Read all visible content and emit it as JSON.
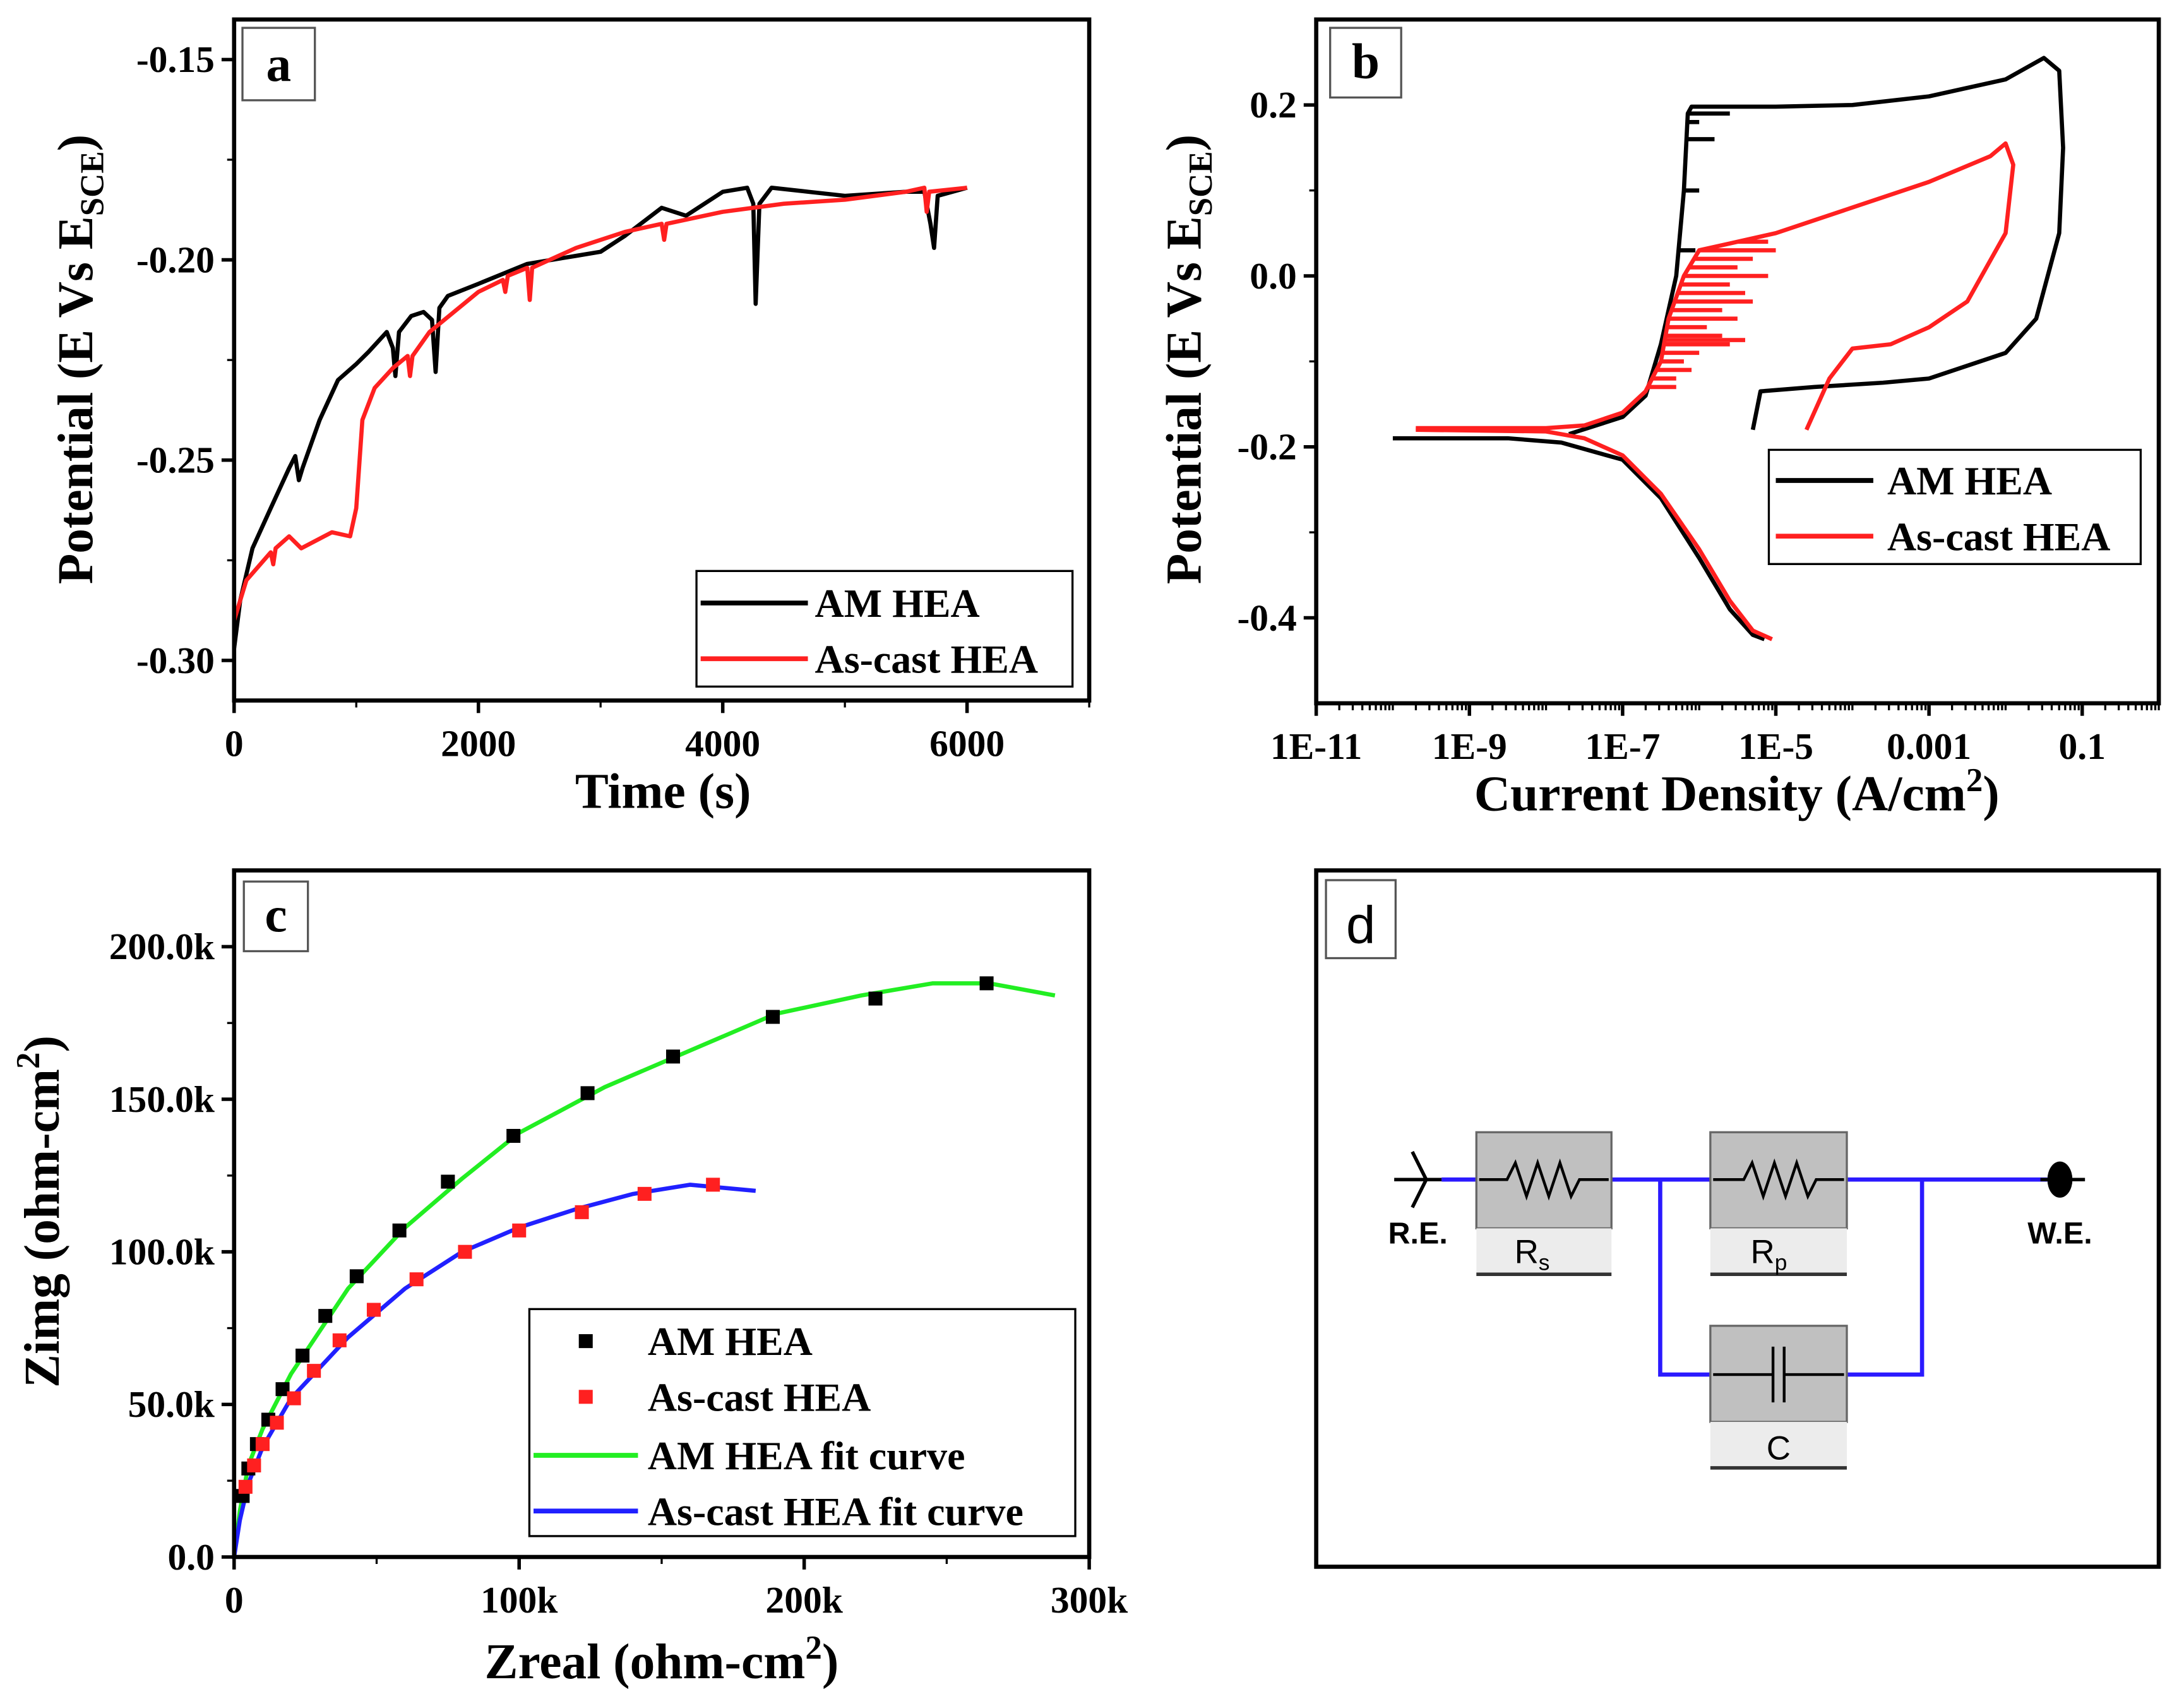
{
  "colors": {
    "am": "#000000",
    "ascast": "#ff2020",
    "am_fit": "#22ee22",
    "ascast_fit": "#2020ff",
    "wire": "#2b1aff",
    "block": "#c0c0c0",
    "block_label": "#ececec"
  },
  "chart_data": [
    {
      "panel": "a",
      "type": "line",
      "xlabel": "Time (s)",
      "ylabel_main": "Potential (E Vs E",
      "ylabel_sub": "SCE",
      "ylabel_end": ")",
      "xlim": [
        0,
        7000
      ],
      "ylim": [
        -0.31,
        -0.14
      ],
      "xticks": [
        0,
        2000,
        4000,
        6000
      ],
      "xtick_labels": [
        "0",
        "2000",
        "4000",
        "6000"
      ],
      "yticks": [
        -0.15,
        -0.2,
        -0.25,
        -0.3
      ],
      "ytick_labels": [
        "-0.15",
        "-0.20",
        "-0.25",
        "-0.30"
      ],
      "legend": "bottom-right",
      "series": [
        {
          "name": "AM HEA",
          "color": "#000000",
          "points": [
            [
              0,
              -0.297
            ],
            [
              50,
              -0.285
            ],
            [
              150,
              -0.272
            ],
            [
              300,
              -0.262
            ],
            [
              450,
              -0.252
            ],
            [
              500,
              -0.249
            ],
            [
              530,
              -0.255
            ],
            [
              560,
              -0.252
            ],
            [
              700,
              -0.24
            ],
            [
              850,
              -0.23
            ],
            [
              1000,
              -0.226
            ],
            [
              1100,
              -0.223
            ],
            [
              1250,
              -0.218
            ],
            [
              1300,
              -0.222
            ],
            [
              1320,
              -0.229
            ],
            [
              1350,
              -0.218
            ],
            [
              1450,
              -0.214
            ],
            [
              1550,
              -0.213
            ],
            [
              1620,
              -0.215
            ],
            [
              1650,
              -0.228
            ],
            [
              1680,
              -0.212
            ],
            [
              1750,
              -0.209
            ],
            [
              2000,
              -0.206
            ],
            [
              2400,
              -0.201
            ],
            [
              2800,
              -0.199
            ],
            [
              3000,
              -0.198
            ],
            [
              3200,
              -0.194
            ],
            [
              3500,
              -0.187
            ],
            [
              3700,
              -0.189
            ],
            [
              4000,
              -0.183
            ],
            [
              4200,
              -0.182
            ],
            [
              4250,
              -0.186
            ],
            [
              4270,
              -0.211
            ],
            [
              4300,
              -0.186
            ],
            [
              4400,
              -0.182
            ],
            [
              4700,
              -0.183
            ],
            [
              5000,
              -0.184
            ],
            [
              5500,
              -0.183
            ],
            [
              5650,
              -0.183
            ],
            [
              5700,
              -0.191
            ],
            [
              5730,
              -0.197
            ],
            [
              5760,
              -0.184
            ],
            [
              6000,
              -0.182
            ]
          ]
        },
        {
          "name": "As-cast HEA",
          "color": "#ff2020",
          "points": [
            [
              0,
              -0.29
            ],
            [
              100,
              -0.28
            ],
            [
              300,
              -0.273
            ],
            [
              320,
              -0.276
            ],
            [
              340,
              -0.272
            ],
            [
              450,
              -0.269
            ],
            [
              550,
              -0.272
            ],
            [
              800,
              -0.268
            ],
            [
              950,
              -0.269
            ],
            [
              1000,
              -0.262
            ],
            [
              1050,
              -0.24
            ],
            [
              1150,
              -0.232
            ],
            [
              1300,
              -0.227
            ],
            [
              1420,
              -0.224
            ],
            [
              1440,
              -0.229
            ],
            [
              1460,
              -0.224
            ],
            [
              1600,
              -0.218
            ],
            [
              2000,
              -0.208
            ],
            [
              2200,
              -0.205
            ],
            [
              2220,
              -0.208
            ],
            [
              2240,
              -0.204
            ],
            [
              2400,
              -0.202
            ],
            [
              2420,
              -0.21
            ],
            [
              2440,
              -0.202
            ],
            [
              2800,
              -0.197
            ],
            [
              3200,
              -0.193
            ],
            [
              3500,
              -0.191
            ],
            [
              3520,
              -0.195
            ],
            [
              3540,
              -0.191
            ],
            [
              4000,
              -0.188
            ],
            [
              4500,
              -0.186
            ],
            [
              5000,
              -0.185
            ],
            [
              5500,
              -0.183
            ],
            [
              5650,
              -0.182
            ],
            [
              5670,
              -0.188
            ],
            [
              5690,
              -0.183
            ],
            [
              6000,
              -0.182
            ]
          ]
        }
      ]
    },
    {
      "panel": "b",
      "type": "line",
      "xscale": "log",
      "xlabel_main": "Current Density (A/cm",
      "xlabel_sup": "2",
      "xlabel_end": ")",
      "ylabel_main": "Potential (E Vs E",
      "ylabel_sub": "SCE",
      "ylabel_end": ")",
      "xlim_log10": [
        -11,
        0
      ],
      "ylim": [
        -0.5,
        0.3
      ],
      "xticks_log10": [
        -11,
        -9,
        -7,
        -5,
        -3,
        -1
      ],
      "xtick_labels": [
        "1E-11",
        "1E-9",
        "1E-7",
        "1E-5",
        "0.001",
        "0.1"
      ],
      "yticks": [
        0.2,
        0.0,
        -0.2,
        -0.4
      ],
      "ytick_labels": [
        "0.2",
        "0.0",
        "-0.2",
        "-0.4"
      ],
      "legend": "center-right",
      "series": [
        {
          "name": "AM HEA",
          "color": "#000000",
          "cathodic_log10": [
            [
              -10,
              -0.19
            ],
            [
              -8.5,
              -0.19
            ],
            [
              -7.8,
              -0.195
            ],
            [
              -7,
              -0.215
            ],
            [
              -6.5,
              -0.26
            ],
            [
              -6,
              -0.33
            ],
            [
              -5.6,
              -0.39
            ],
            [
              -5.3,
              -0.42
            ],
            [
              -5.15,
              -0.425
            ]
          ],
          "anodic_log10": [
            [
              -7.7,
              -0.185
            ],
            [
              -7,
              -0.165
            ],
            [
              -6.7,
              -0.14
            ],
            [
              -6.5,
              -0.08
            ],
            [
              -6.3,
              0.0
            ],
            [
              -6.2,
              0.1
            ],
            [
              -6.15,
              0.19
            ],
            [
              -6.1,
              0.198
            ],
            [
              -5,
              0.198
            ],
            [
              -4,
              0.2
            ],
            [
              -3,
              0.21
            ],
            [
              -2,
              0.23
            ],
            [
              -1.5,
              0.255
            ],
            [
              -1.3,
              0.24
            ],
            [
              -1.25,
              0.15
            ],
            [
              -1.3,
              0.05
            ],
            [
              -1.6,
              -0.05
            ],
            [
              -2,
              -0.09
            ],
            [
              -3,
              -0.12
            ],
            [
              -3.6,
              -0.125
            ],
            [
              -4.5,
              -0.13
            ],
            [
              -5.2,
              -0.135
            ],
            [
              -5.3,
              -0.18
            ]
          ],
          "spikes_log10": [
            [
              0.19,
              -5.6
            ],
            [
              0.16,
              -5.8
            ],
            [
              0.18,
              -6.0
            ],
            [
              0.1,
              -6.0
            ],
            [
              0.03,
              -6.05
            ]
          ]
        },
        {
          "name": "As-cast HEA",
          "color": "#ff2020",
          "cathodic_log10": [
            [
              -9.7,
              -0.18
            ],
            [
              -8,
              -0.182
            ],
            [
              -7.5,
              -0.19
            ],
            [
              -7,
              -0.21
            ],
            [
              -6.5,
              -0.255
            ],
            [
              -6,
              -0.32
            ],
            [
              -5.6,
              -0.38
            ],
            [
              -5.3,
              -0.415
            ],
            [
              -5.05,
              -0.425
            ]
          ],
          "anodic_log10": [
            [
              -9.7,
              -0.178
            ],
            [
              -8,
              -0.178
            ],
            [
              -7.5,
              -0.175
            ],
            [
              -7,
              -0.16
            ],
            [
              -6.7,
              -0.135
            ],
            [
              -6.5,
              -0.1
            ],
            [
              -6.4,
              -0.05
            ],
            [
              -6.2,
              0.0
            ],
            [
              -6,
              0.03
            ],
            [
              -5.5,
              0.04
            ],
            [
              -5,
              0.05
            ],
            [
              -4,
              0.08
            ],
            [
              -3,
              0.11
            ],
            [
              -2.2,
              0.14
            ],
            [
              -2,
              0.155
            ],
            [
              -1.9,
              0.13
            ],
            [
              -2,
              0.05
            ],
            [
              -2.5,
              -0.03
            ],
            [
              -3,
              -0.06
            ],
            [
              -3.5,
              -0.08
            ],
            [
              -4,
              -0.085
            ],
            [
              -4.3,
              -0.12
            ],
            [
              -4.6,
              -0.18
            ]
          ],
          "spikes_log10": [
            [
              0.04,
              -5.1
            ],
            [
              0.03,
              -5.0
            ],
            [
              0.02,
              -5.3
            ],
            [
              0.01,
              -5.5
            ],
            [
              0.0,
              -5.1
            ],
            [
              -0.01,
              -5.6
            ],
            [
              -0.02,
              -5.4
            ],
            [
              -0.03,
              -5.3
            ],
            [
              -0.04,
              -5.7
            ],
            [
              -0.05,
              -5.5
            ],
            [
              -0.06,
              -5.9
            ],
            [
              -0.07,
              -5.7
            ],
            [
              -0.075,
              -5.4
            ],
            [
              -0.08,
              -5.6
            ],
            [
              -0.09,
              -6.0
            ],
            [
              -0.1,
              -6.2
            ],
            [
              -0.11,
              -6.1
            ],
            [
              -0.12,
              -6.3
            ],
            [
              -0.13,
              -6.3
            ]
          ]
        }
      ]
    },
    {
      "panel": "c",
      "type": "scatter",
      "xlabel_main": "Zreal (ohm-cm",
      "xlabel_sup": "2",
      "xlabel_end": ")",
      "ylabel_main": "Zimg (ohm-cm",
      "ylabel_sup": "2",
      "ylabel_end": ")",
      "xlim": [
        0,
        300000
      ],
      "ylim": [
        0,
        225000
      ],
      "xticks": [
        0,
        100000,
        200000,
        300000
      ],
      "xtick_labels": [
        "0",
        "100k",
        "200k",
        "300k"
      ],
      "yticks": [
        0,
        50000,
        100000,
        150000,
        200000
      ],
      "ytick_labels": [
        "0.0",
        "50.0k",
        "100.0k",
        "150.0k",
        "200.0k"
      ],
      "legend": "bottom-right",
      "series": [
        {
          "name": "AM HEA",
          "kind": "scatter",
          "color": "#000000",
          "points": [
            [
              3000,
              20000
            ],
            [
              5000,
              29000
            ],
            [
              8000,
              37000
            ],
            [
              12000,
              45000
            ],
            [
              17000,
              55000
            ],
            [
              24000,
              66000
            ],
            [
              32000,
              79000
            ],
            [
              43000,
              92000
            ],
            [
              58000,
              107000
            ],
            [
              75000,
              123000
            ],
            [
              98000,
              138000
            ],
            [
              124000,
              152000
            ],
            [
              154000,
              164000
            ],
            [
              189000,
              177000
            ],
            [
              225000,
              183000
            ],
            [
              264000,
              188000
            ]
          ]
        },
        {
          "name": "As-cast HEA",
          "kind": "scatter",
          "color": "#ff2020",
          "points": [
            [
              4000,
              23000
            ],
            [
              7000,
              30000
            ],
            [
              10000,
              37000
            ],
            [
              15000,
              44000
            ],
            [
              21000,
              52000
            ],
            [
              28000,
              61000
            ],
            [
              37000,
              71000
            ],
            [
              49000,
              81000
            ],
            [
              64000,
              91000
            ],
            [
              81000,
              100000
            ],
            [
              100000,
              107000
            ],
            [
              122000,
              113000
            ],
            [
              144000,
              119000
            ],
            [
              168000,
              122000
            ]
          ]
        },
        {
          "name": "AM HEA fit curve",
          "kind": "line",
          "color": "#22ee22",
          "points": [
            [
              0,
              0
            ],
            [
              2000,
              15000
            ],
            [
              5000,
              30000
            ],
            [
              10000,
              42000
            ],
            [
              20000,
              60000
            ],
            [
              40000,
              88000
            ],
            [
              60000,
              108000
            ],
            [
              80000,
              124000
            ],
            [
              100000,
              139000
            ],
            [
              130000,
              154000
            ],
            [
              160000,
              166000
            ],
            [
              190000,
              178000
            ],
            [
              220000,
              184000
            ],
            [
              245000,
              188000
            ],
            [
              265000,
              188000
            ],
            [
              288000,
              184000
            ]
          ]
        },
        {
          "name": "As-cast HEA fit curve",
          "kind": "line",
          "color": "#2020ff",
          "points": [
            [
              0,
              0
            ],
            [
              2000,
              12000
            ],
            [
              5000,
              24000
            ],
            [
              10000,
              36000
            ],
            [
              20000,
              52000
            ],
            [
              40000,
              72000
            ],
            [
              60000,
              88000
            ],
            [
              80000,
              100000
            ],
            [
              100000,
              108000
            ],
            [
              120000,
              114000
            ],
            [
              140000,
              119000
            ],
            [
              160000,
              122000
            ],
            [
              183000,
              120000
            ]
          ]
        }
      ]
    }
  ],
  "panel_labels": {
    "a": "a",
    "b": "b",
    "c": "c",
    "d": "d"
  },
  "circuit": {
    "re_label": "R.E.",
    "we_label": "W.E.",
    "rs_label": "R",
    "rs_sub": "s",
    "rp_label": "R",
    "rp_sub": "p",
    "c_label": "C"
  }
}
